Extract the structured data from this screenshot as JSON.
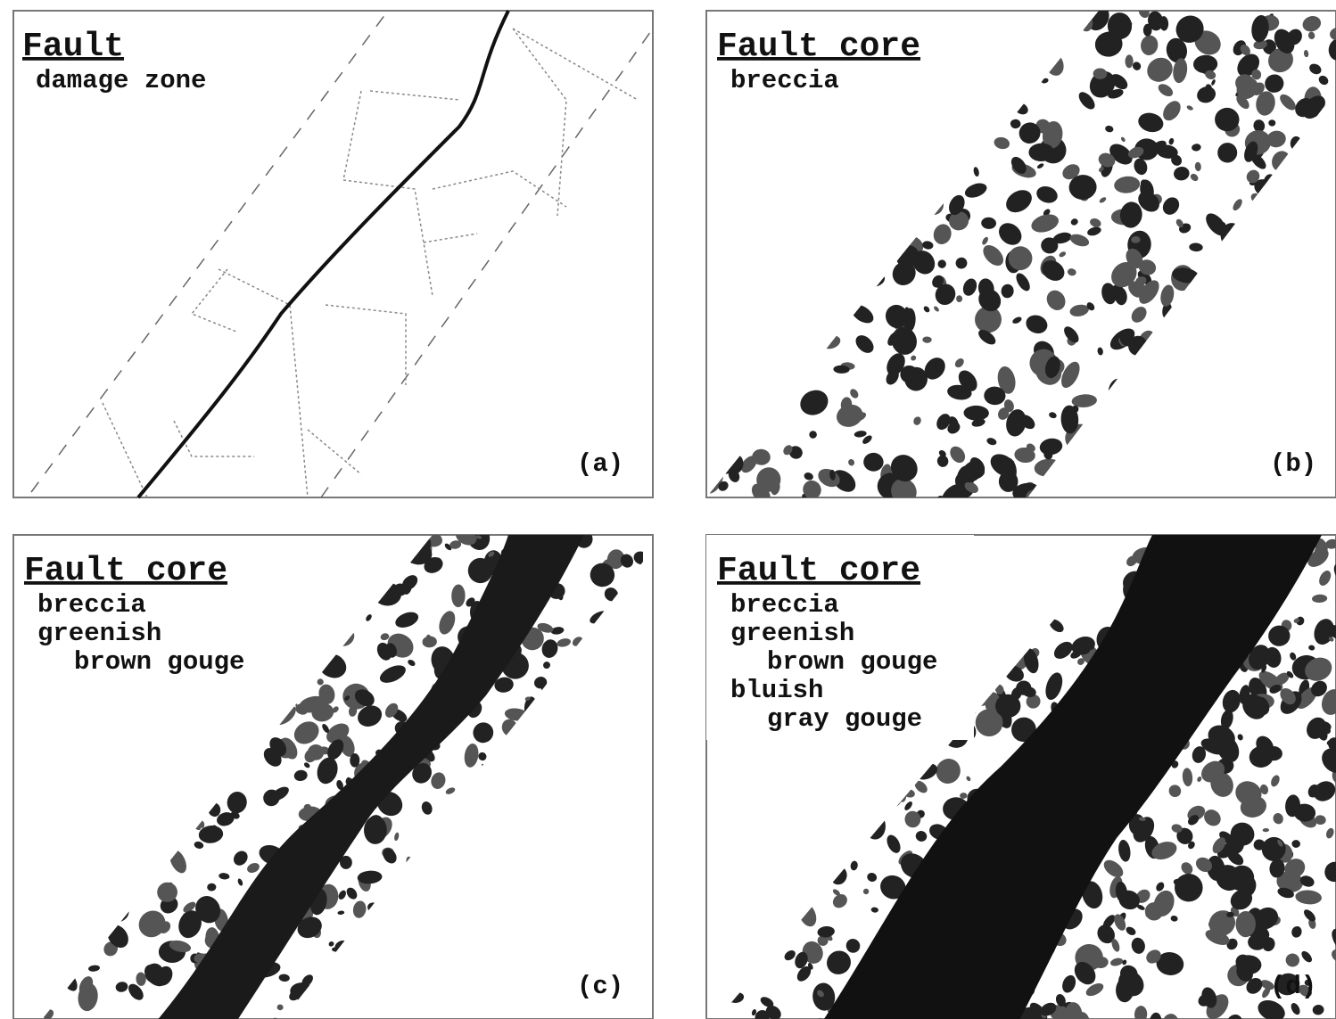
{
  "panels": [
    {
      "title": "Fault",
      "lines": [
        "damage zone"
      ],
      "label": "(a)"
    },
    {
      "title": "Fault core",
      "lines": [
        "breccia"
      ],
      "label": "(b)"
    },
    {
      "title": "Fault core",
      "lines": [
        "breccia",
        "greenish",
        "brown gouge"
      ],
      "label": "(c)"
    },
    {
      "title": "Fault core",
      "lines": [
        "breccia",
        "greenish",
        "brown gouge",
        "bluish",
        "gray gouge"
      ],
      "label": "(d)"
    }
  ]
}
